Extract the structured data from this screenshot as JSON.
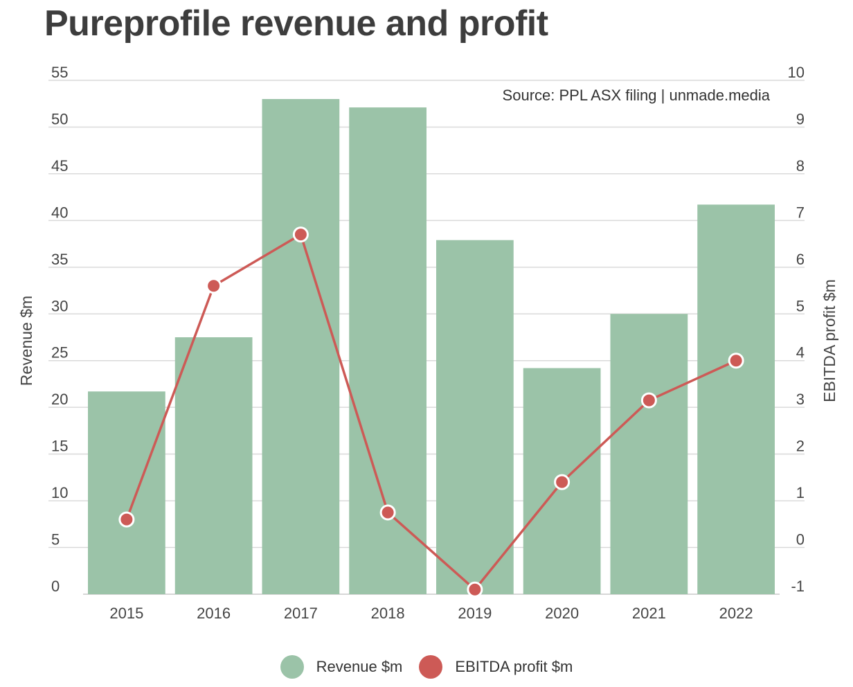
{
  "chart_data": {
    "type": "bar",
    "title": "Pureprofile revenue and profit",
    "annotation": "Source: PPL ASX filing | unmade.media",
    "categories": [
      "2015",
      "2016",
      "2017",
      "2018",
      "2019",
      "2020",
      "2021",
      "2022"
    ],
    "series": [
      {
        "name": "Revenue $m",
        "type": "bar",
        "axis": "left",
        "color": "#9bc3a8",
        "values": [
          21.7,
          27.5,
          53.0,
          52.1,
          37.9,
          24.2,
          30.0,
          41.7
        ]
      },
      {
        "name": "EBITDA profit $m",
        "type": "line",
        "axis": "right",
        "color": "#cd5a56",
        "values": [
          0.6,
          5.6,
          6.7,
          0.75,
          -0.9,
          1.4,
          3.15,
          4.0
        ]
      }
    ],
    "ylabel": "Revenue $m",
    "y2label": "EBITDA profit $m",
    "ylim": [
      0,
      55
    ],
    "y2lim": [
      -1,
      10
    ],
    "yticks": [
      "0",
      "5",
      "10",
      "15",
      "20",
      "25",
      "30",
      "35",
      "40",
      "45",
      "50",
      "55"
    ],
    "y2ticks": [
      "-1",
      "0",
      "1",
      "2",
      "3",
      "4",
      "5",
      "6",
      "7",
      "8",
      "9",
      "10"
    ],
    "grid": true,
    "legend_position": "bottom"
  }
}
